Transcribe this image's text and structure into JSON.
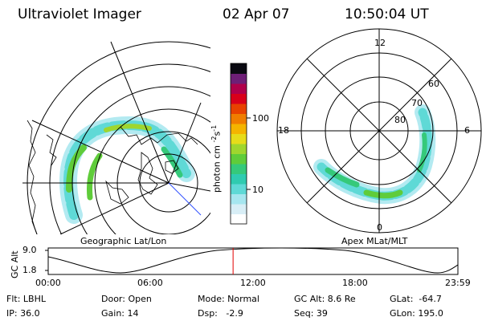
{
  "header": {
    "instrument": "Ultraviolet Imager",
    "date": "02 Apr 07",
    "time": "10:50:04 UT"
  },
  "left_panel": {
    "caption": "Geographic Lat/Lon"
  },
  "right_panel": {
    "caption": "Apex MLat/MLT",
    "mlt_labels": [
      "12",
      "18",
      "6",
      "0"
    ],
    "lat_labels": [
      "60",
      "70",
      "80"
    ]
  },
  "colorbar": {
    "unit_label": "photon cm",
    "unit_exp1": "-2",
    "unit_mid": "s",
    "unit_exp2": "-1",
    "ticks": [
      "100",
      "10"
    ],
    "colors": [
      "#ffffff",
      "#d8eef6",
      "#a6e6ef",
      "#5fd9d6",
      "#2fcbb0",
      "#35c97a",
      "#5fcc3a",
      "#9fd62e",
      "#e6dc1a",
      "#f4b400",
      "#f07d00",
      "#e84200",
      "#d9001a",
      "#b0004b",
      "#6e1f77",
      "#0a0a12"
    ]
  },
  "altitude_plot": {
    "ylabel": "GC Alt",
    "y_ticks": [
      "9.0",
      "1.8"
    ],
    "x_ticks": [
      "00:00",
      "06:00",
      "12:00",
      "18:00",
      "23:59"
    ],
    "current_time_marker_hours": 10.83
  },
  "info": {
    "flt": "Flt: LBHL",
    "ip": "IP: 36.0",
    "door": "Door: Open",
    "gain": "Gain: 14",
    "mode": "Mode: Normal",
    "dsp": "Dsp:   -2.9",
    "gc_alt": "GC Alt: 8.6 Re",
    "seq": "Seq: 39",
    "glat": "GLat:  -64.7",
    "glon": "GLon: 195.0"
  }
}
